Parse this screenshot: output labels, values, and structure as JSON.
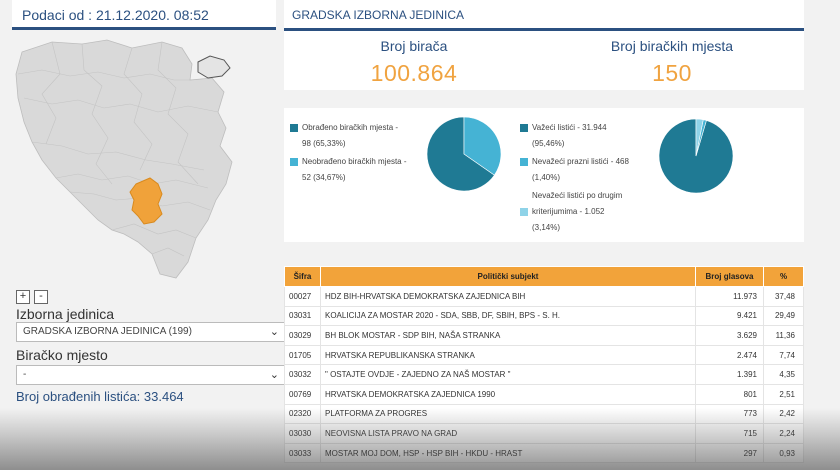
{
  "header": {
    "date_label": "Podaci od : 21.12.2020. 08:52"
  },
  "map": {
    "zoom_in": "+",
    "zoom_out": "-"
  },
  "filters": {
    "unit_label": "Izborna jedinica",
    "unit_value": "GRADSKA IZBORNA JEDINICA (199)",
    "station_label": "Biračko mjesto",
    "station_value": "-"
  },
  "counted_label": "Broj obrađenih listića: 33.464",
  "unit_card": {
    "title": "GRADSKA IZBORNA JEDINICA",
    "voters_label": "Broj birača",
    "voters_value": "100.864",
    "stations_label": "Broj biračkih mjesta",
    "stations_value": "150"
  },
  "processing": {
    "items": [
      {
        "line1": "Obrađeno biračkih mjesta -",
        "line2": "98 (65,33%)",
        "color": "#1f7a94"
      },
      {
        "line1": "Neobrađeno biračkih mjesta -",
        "line2": "52 (34,67%)",
        "color": "#45b3d4"
      }
    ],
    "pie": [
      65.33,
      34.67
    ]
  },
  "ballots": {
    "items": [
      {
        "line1": "Važeći listići - 31.944",
        "line2": "(95,46%)",
        "color": "#1f7a94"
      },
      {
        "line1": "Nevažeći prazni listići - 468",
        "line2": "(1,40%)",
        "color": "#45b3d4"
      },
      {
        "line1": "Nevažeći listići po drugim",
        "line2": "kriterijumima - 1.052",
        "line3": "(3,14%)",
        "color": "#8fd3e8"
      }
    ],
    "pie": [
      95.46,
      1.4,
      3.14
    ]
  },
  "table": {
    "headers": [
      "Šifra",
      "Politički subjekt",
      "Broj glasova",
      "%"
    ],
    "rows": [
      [
        "00027",
        "HDZ BIH-HRVATSKA DEMOKRATSKA ZAJEDNICA BIH",
        "11.973",
        "37,48"
      ],
      [
        "03031",
        "KOALICIJA ZA MOSTAR 2020 - SDA, SBB, DF, SBIH, BPS - S. H.",
        "9.421",
        "29,49"
      ],
      [
        "03029",
        "BH BLOK MOSTAR - SDP BIH, NAŠA STRANKA",
        "3.629",
        "11,36"
      ],
      [
        "01705",
        "HRVATSKA REPUBLIKANSKA STRANKA",
        "2.474",
        "7,74"
      ],
      [
        "03032",
        "\" OSTAJTE OVDJE - ZAJEDNO ZA NAŠ MOSTAR \"",
        "1.391",
        "4,35"
      ],
      [
        "00769",
        "HRVATSKA DEMOKRATSKA ZAJEDNICA 1990",
        "801",
        "2,51"
      ],
      [
        "02320",
        "PLATFORMA ZA PROGRES",
        "773",
        "2,42"
      ],
      [
        "03030",
        "NEOVISNA LISTA PRAVO NA GRAD",
        "715",
        "2,24"
      ],
      [
        "03033",
        "MOSTAR MOJ DOM, HSP - HSP BIH - HKDU - HRAST",
        "297",
        "0,93"
      ]
    ]
  }
}
